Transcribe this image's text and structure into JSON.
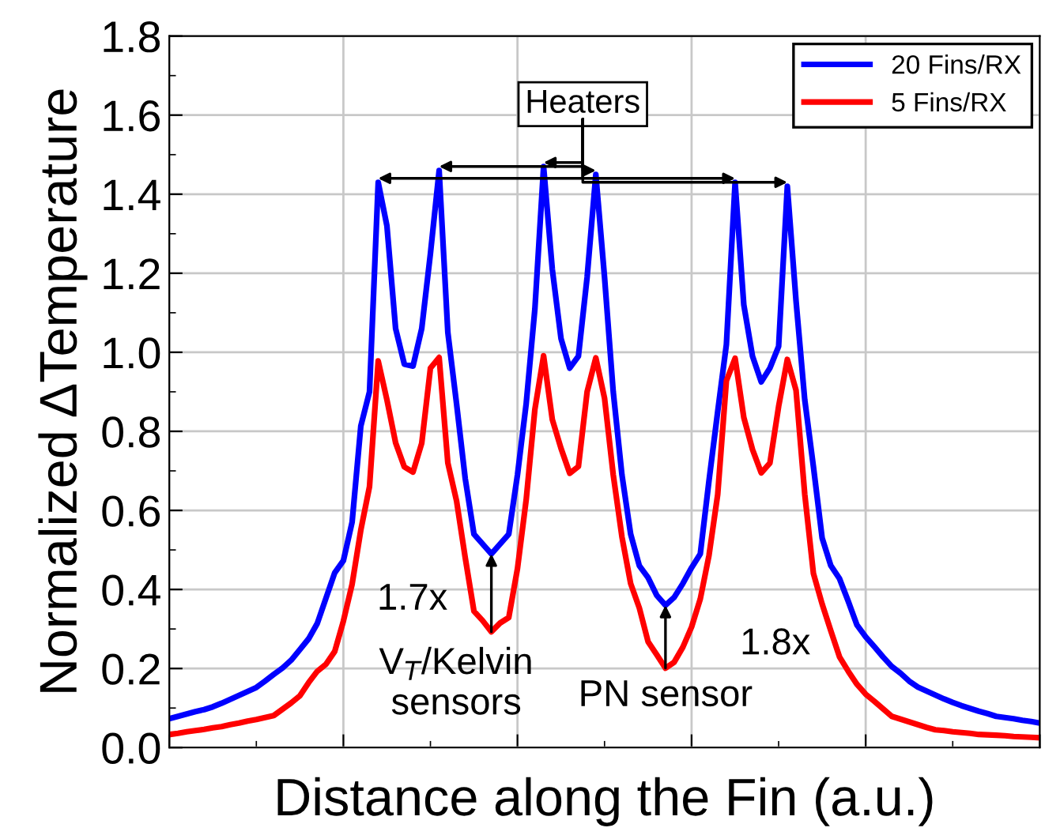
{
  "chart_data": {
    "type": "line",
    "xlabel": "Distance along the Fin (a.u.)",
    "ylabel": "Normalized ΔTemperature",
    "categories": [
      null,
      null,
      null,
      null,
      null,
      null,
      null,
      null,
      null,
      null,
      null,
      null,
      null,
      null,
      null,
      null,
      null,
      null,
      null,
      null,
      null,
      null,
      null,
      null,
      null,
      null,
      null,
      null,
      null,
      null,
      null,
      null,
      null,
      null,
      null,
      null,
      null,
      null,
      null,
      null,
      null,
      null,
      null,
      null,
      null,
      null,
      null,
      null,
      null,
      null,
      null,
      null,
      null,
      null,
      null,
      null,
      null,
      null,
      null,
      null,
      null,
      null,
      null,
      null,
      null,
      null,
      null,
      null,
      null,
      null,
      null,
      null,
      null,
      null,
      null,
      null,
      null,
      null,
      null,
      null,
      null,
      null,
      null,
      null,
      null,
      null,
      null,
      null,
      null,
      null,
      null,
      null,
      null,
      null,
      null,
      null,
      null,
      null,
      null,
      null,
      null
    ],
    "ylim": [
      0,
      1.8
    ],
    "yticks": [
      {
        "value": 0,
        "label": "0.0"
      },
      {
        "value": 0.2,
        "label": "0.2"
      },
      {
        "value": 0.4,
        "label": "0.4"
      },
      {
        "value": 0.6,
        "label": "0.6"
      },
      {
        "value": 0.8,
        "label": "0.8"
      },
      {
        "value": 1.0,
        "label": "1.0"
      },
      {
        "value": 1.2,
        "label": "1.2"
      },
      {
        "value": 1.4,
        "label": "1.4"
      },
      {
        "value": 1.6,
        "label": "1.6"
      },
      {
        "value": 1.8,
        "label": "1.8"
      }
    ],
    "grid": true,
    "legend": "top right",
    "marker": "none",
    "line_style": "solid",
    "series": [
      {
        "name": "20 Fins/RX",
        "color": "#0000ff",
        "values": [
          0.073,
          0.079,
          0.085,
          0.091,
          0.096,
          0.103,
          0.112,
          0.122,
          0.132,
          0.142,
          0.152,
          0.168,
          0.185,
          0.201,
          0.221,
          0.248,
          0.275,
          0.314,
          0.378,
          0.442,
          0.473,
          0.57,
          0.813,
          0.9,
          1.43,
          1.32,
          1.06,
          0.97,
          0.965,
          1.06,
          1.25,
          1.46,
          1.05,
          0.87,
          0.68,
          0.54,
          0.515,
          0.49,
          0.515,
          0.54,
          0.69,
          0.87,
          1.11,
          1.47,
          1.21,
          1.035,
          0.96,
          0.99,
          1.19,
          1.45,
          1.19,
          0.9,
          0.69,
          0.54,
          0.46,
          0.43,
          0.385,
          0.36,
          0.38,
          0.415,
          0.455,
          0.49,
          0.675,
          0.85,
          1.02,
          1.43,
          1.12,
          0.99,
          0.925,
          0.96,
          1.015,
          1.42,
          1.13,
          0.88,
          0.71,
          0.53,
          0.46,
          0.427,
          0.37,
          0.31,
          0.28,
          0.255,
          0.229,
          0.205,
          0.188,
          0.168,
          0.153,
          0.143,
          0.133,
          0.123,
          0.114,
          0.106,
          0.099,
          0.092,
          0.086,
          0.079,
          0.076,
          0.073,
          0.069,
          0.066,
          0.062
        ]
      },
      {
        "name": "5 Fins/RX",
        "color": "#ff0000",
        "values": [
          0.033,
          0.036,
          0.04,
          0.043,
          0.046,
          0.05,
          0.053,
          0.058,
          0.062,
          0.067,
          0.071,
          0.076,
          0.081,
          0.097,
          0.113,
          0.131,
          0.164,
          0.193,
          0.211,
          0.243,
          0.32,
          0.413,
          0.55,
          0.66,
          0.978,
          0.88,
          0.771,
          0.71,
          0.697,
          0.77,
          0.96,
          0.987,
          0.72,
          0.624,
          0.48,
          0.345,
          0.321,
          0.293,
          0.315,
          0.329,
          0.453,
          0.627,
          0.856,
          0.991,
          0.83,
          0.757,
          0.694,
          0.711,
          0.9,
          0.986,
          0.884,
          0.69,
          0.533,
          0.415,
          0.353,
          0.268,
          0.235,
          0.201,
          0.216,
          0.254,
          0.305,
          0.376,
          0.486,
          0.64,
          0.928,
          0.985,
          0.835,
          0.754,
          0.695,
          0.72,
          0.863,
          0.982,
          0.904,
          0.641,
          0.44,
          0.363,
          0.295,
          0.229,
          0.193,
          0.16,
          0.135,
          0.117,
          0.098,
          0.079,
          0.072,
          0.065,
          0.058,
          0.051,
          0.045,
          0.043,
          0.04,
          0.038,
          0.036,
          0.033,
          0.032,
          0.031,
          0.03,
          0.028,
          0.027,
          0.026,
          0.025
        ]
      }
    ],
    "annotations": [
      "Heaters",
      "1.7x",
      "V$_{T}$/Kelvin\nsensors",
      "1.8x",
      "PN sensor"
    ]
  }
}
